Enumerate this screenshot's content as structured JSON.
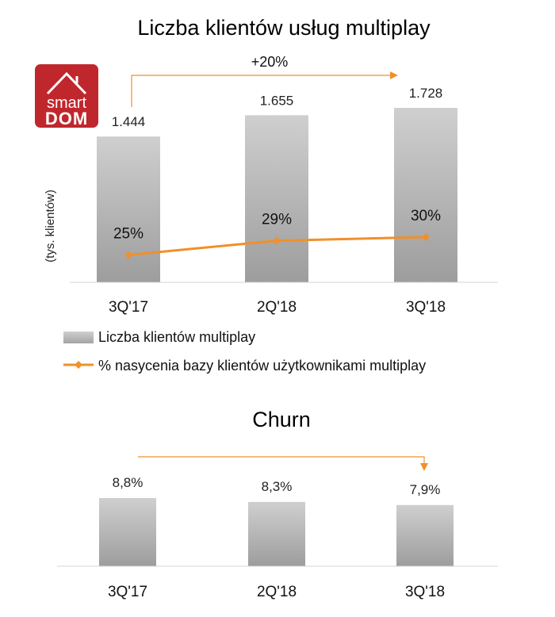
{
  "logo": {
    "line1": "smart",
    "line2": "DOM",
    "color": "#c0272d"
  },
  "colors": {
    "accent": "#f0902a",
    "bar_top": "#c9c9c9",
    "bar_bottom": "#9e9e9e",
    "axis": "#d0d0d0"
  },
  "chart_data": [
    {
      "type": "bar",
      "title": "Liczba klientów usług multiplay",
      "ylabel": "(tys. klientów)",
      "categories": [
        "3Q'17",
        "2Q'18",
        "3Q'18"
      ],
      "series": [
        {
          "name": "Liczba klientów multiplay",
          "type": "bar",
          "values": [
            1444,
            1655,
            1728
          ],
          "labels": [
            "1.444",
            "1.655",
            "1.728"
          ]
        },
        {
          "name": "% nasycenia bazy klientów użytkownikami multiplay",
          "type": "line",
          "values": [
            25,
            29,
            30
          ],
          "labels": [
            "25%",
            "29%",
            "30%"
          ]
        }
      ],
      "annotation": "+20%",
      "legend_position": "bottom",
      "grid": false
    },
    {
      "type": "bar",
      "title": "Churn",
      "categories": [
        "3Q'17",
        "2Q'18",
        "3Q'18"
      ],
      "values": [
        8.8,
        8.3,
        7.9
      ],
      "labels": [
        "8,8%",
        "8,3%",
        "7,9%"
      ],
      "grid": false
    }
  ]
}
